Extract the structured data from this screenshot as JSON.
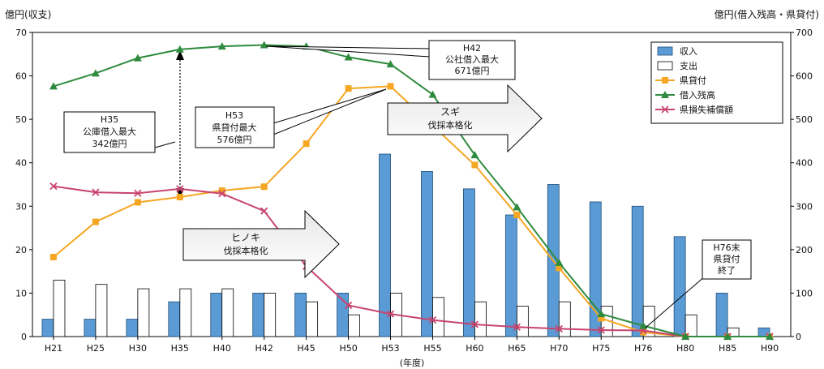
{
  "chart_data": {
    "type": "bar",
    "left_axis_label": "億円(収支)",
    "right_axis_label": "億円(借入残高・県貸付)",
    "xlabel": "(年度)",
    "categories": [
      "H21",
      "H25",
      "H30",
      "H35",
      "H40",
      "H42",
      "H45",
      "H50",
      "H53",
      "H55",
      "H60",
      "H65",
      "H70",
      "H75",
      "H76",
      "H80",
      "H85",
      "H90"
    ],
    "left_ylim": [
      0,
      70
    ],
    "left_ticks": [
      "0",
      "10",
      "20",
      "30",
      "40",
      "50",
      "60",
      "70"
    ],
    "right_ylim": [
      0,
      700
    ],
    "right_ticks": [
      "0",
      "100",
      "200",
      "300",
      "400",
      "500",
      "600",
      "700"
    ],
    "grid": false,
    "legend_position": "top-right",
    "series": [
      {
        "name": "収入",
        "kind": "bar",
        "axis": "left",
        "color": "#5b9bd5",
        "values": [
          4,
          4,
          4,
          8,
          10,
          10,
          10,
          10,
          42,
          38,
          34,
          28,
          35,
          31,
          30,
          23,
          10,
          2
        ]
      },
      {
        "name": "支出",
        "kind": "bar",
        "axis": "left",
        "color": "#ffffff",
        "values": [
          13,
          12,
          11,
          11,
          11,
          10,
          8,
          5,
          10,
          9,
          8,
          7,
          8,
          7,
          7,
          5,
          2,
          0
        ]
      },
      {
        "name": "県貸付",
        "kind": "line",
        "axis": "right",
        "color": "#f5a623",
        "marker": "square",
        "values": [
          183,
          264,
          309,
          321,
          336,
          345,
          444,
          571,
          576,
          null,
          395,
          280,
          158,
          42,
          10,
          0,
          0,
          0
        ]
      },
      {
        "name": "借入残高",
        "kind": "line",
        "axis": "right",
        "color": "#2e8b3e",
        "marker": "triangle",
        "values": [
          576,
          606,
          641,
          661,
          668,
          671,
          668,
          643,
          627,
          557,
          418,
          298,
          170,
          52,
          25,
          0,
          0,
          0
        ]
      },
      {
        "name": "県損失補償額",
        "kind": "line",
        "axis": "right",
        "color": "#c8446e",
        "marker": "x",
        "values": [
          346,
          332,
          330,
          340,
          329,
          289,
          162,
          72,
          52,
          38,
          28,
          22,
          18,
          15,
          14,
          0,
          0,
          0
        ]
      }
    ],
    "annotations": {
      "h35": {
        "lines": [
          "H35",
          "公庫借入最大",
          "342億円"
        ]
      },
      "h53": {
        "lines": [
          "H53",
          "県貸付最大",
          "576億円"
        ]
      },
      "h42": {
        "lines": [
          "H42",
          "公社借入最大",
          "671億円"
        ]
      },
      "h76": {
        "lines": [
          "H76末",
          "県貸付",
          "終了"
        ]
      },
      "sugi": {
        "lines": [
          "スギ",
          "伐採本格化"
        ]
      },
      "hinoki": {
        "lines": [
          "ヒノキ",
          "伐採本格化"
        ]
      }
    }
  }
}
